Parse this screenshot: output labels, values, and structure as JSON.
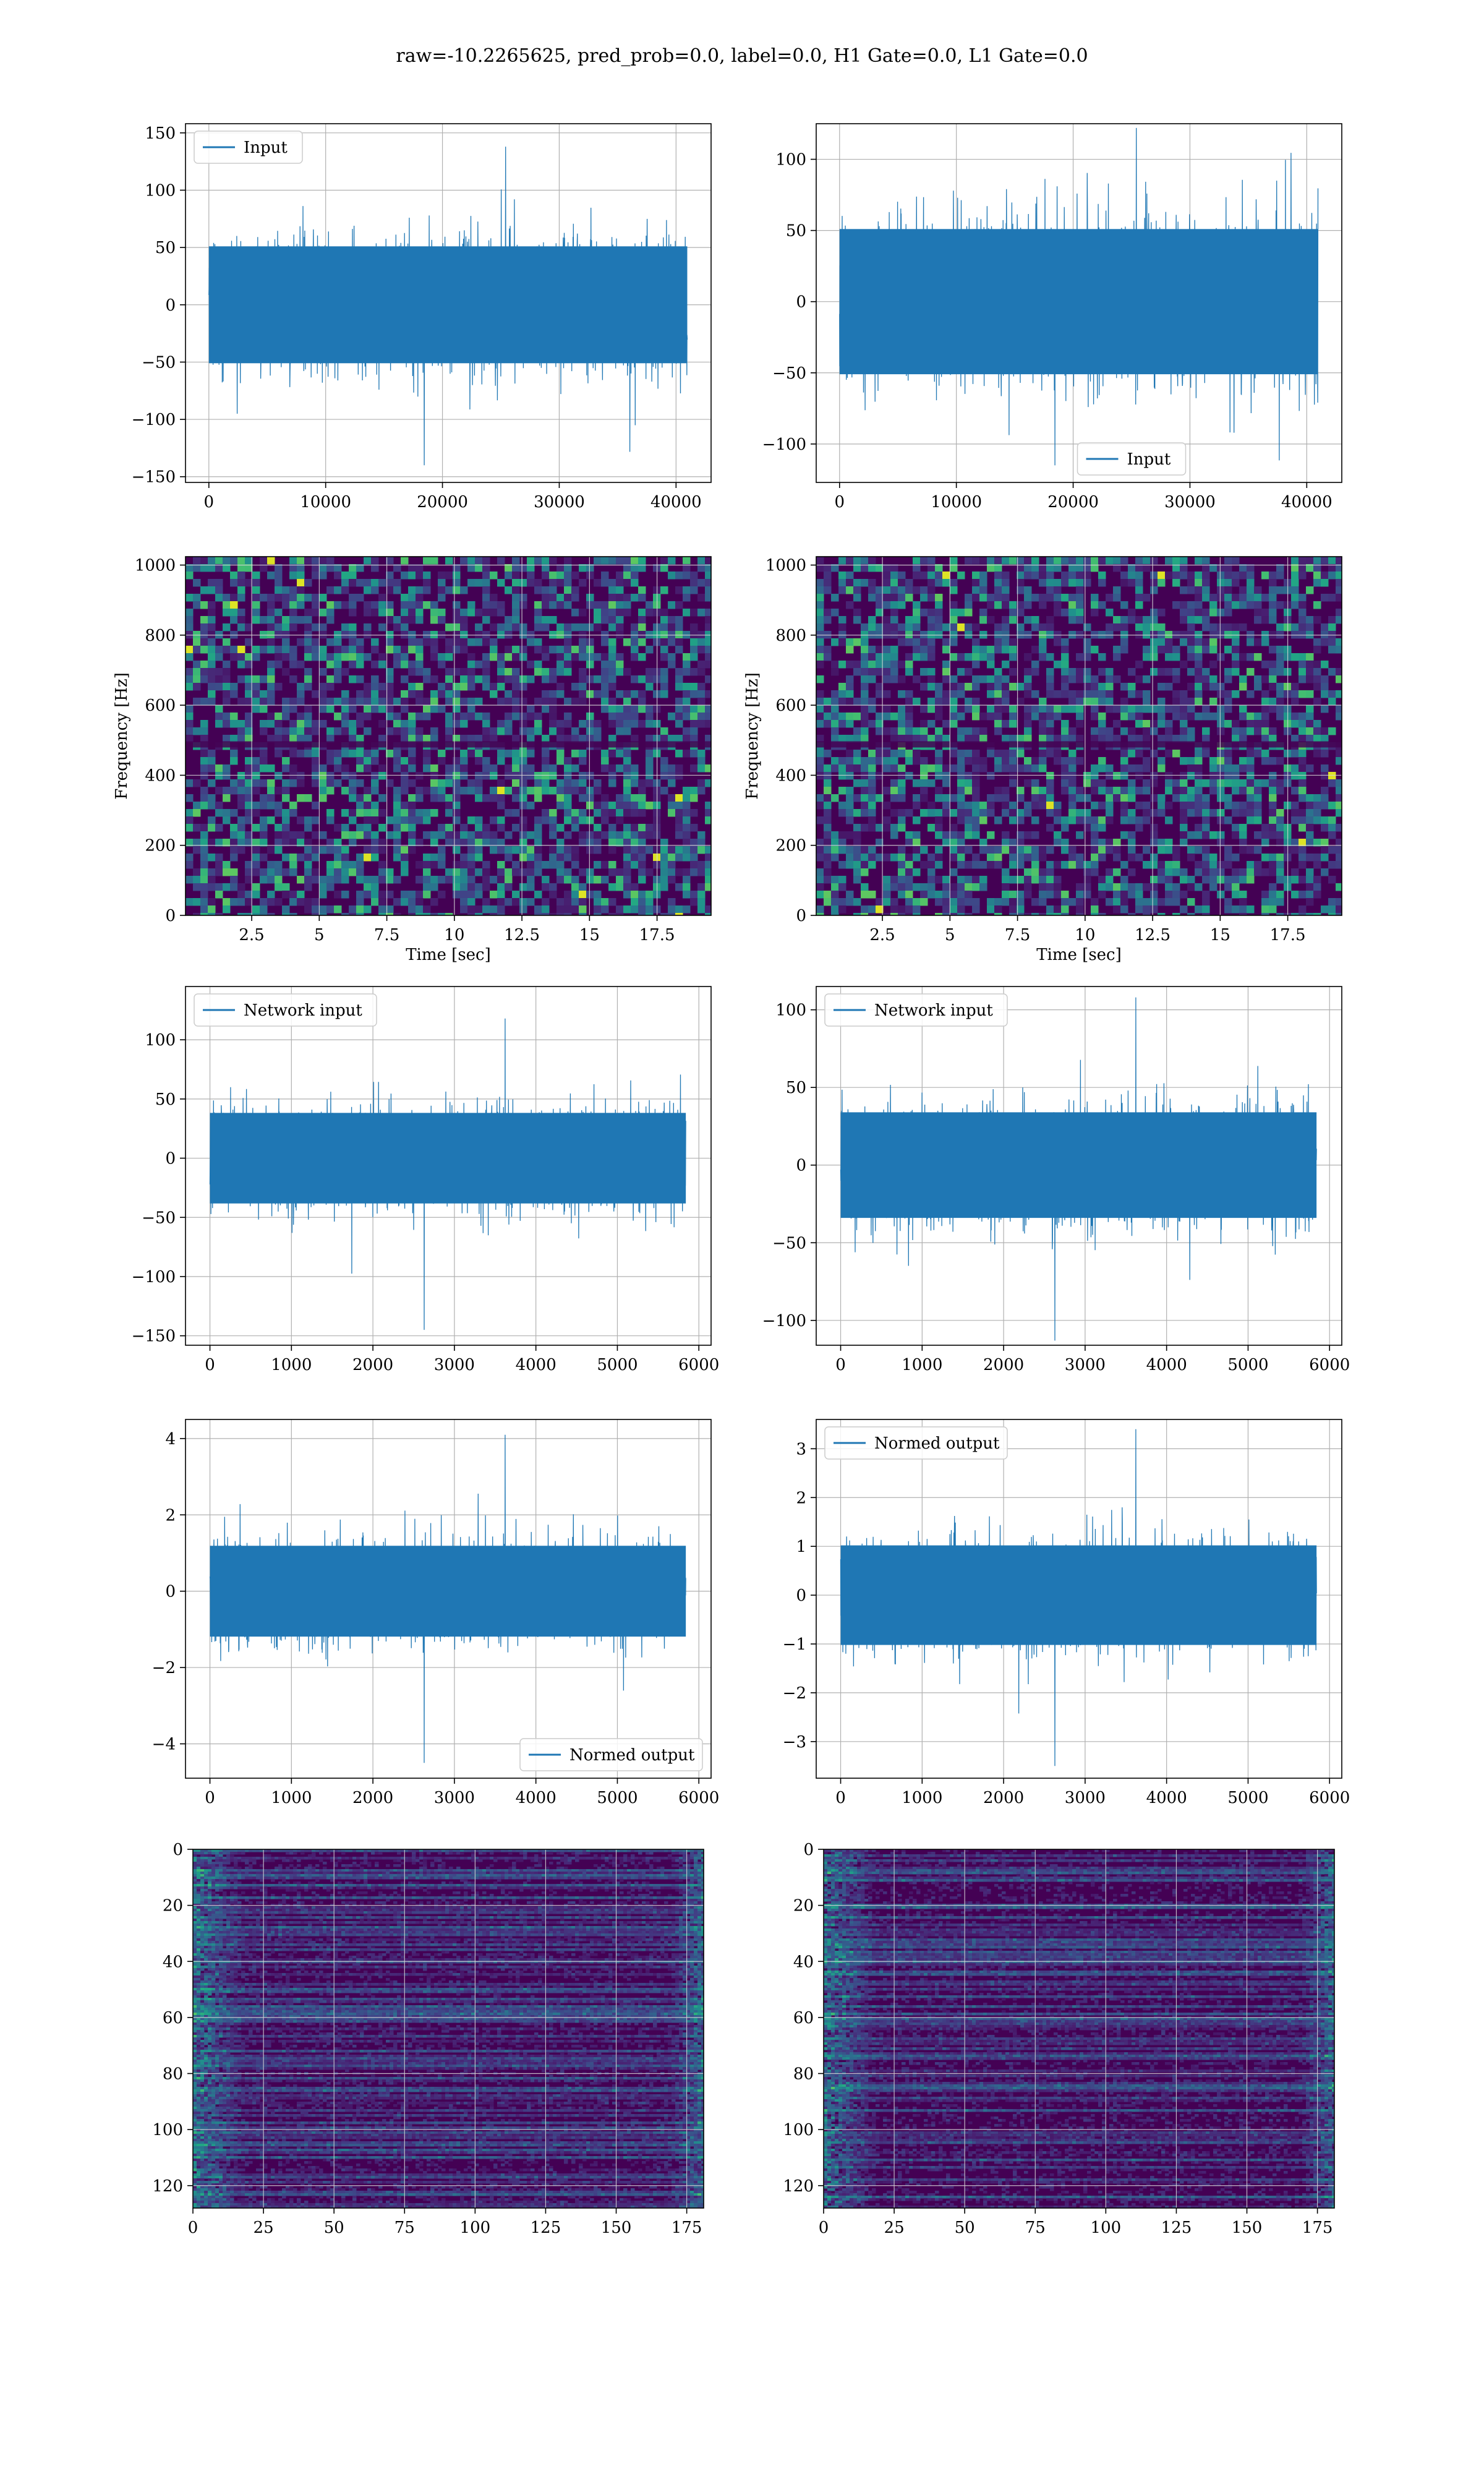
{
  "figure": {
    "suptitle": "raw=-10.2265625, pred_prob=0.0, label=0.0, H1 Gate=0.0, L1 Gate=0.0"
  },
  "colors": {
    "line": "#1f77b4",
    "grid": "#b0b0b0",
    "axes": "#000000",
    "viridis_dark": "#440154",
    "viridis_mid": "#21918c",
    "viridis_bright": "#fde725"
  },
  "chart_data": [
    {
      "id": "ts-input-h1",
      "type": "line",
      "title": "",
      "xlabel": "",
      "ylabel": "",
      "xlim": [
        -2000,
        43000
      ],
      "ylim": [
        -155,
        158
      ],
      "xticks": [
        0,
        10000,
        20000,
        30000,
        40000
      ],
      "yticks": [
        -150,
        -100,
        -50,
        0,
        50,
        100,
        150
      ],
      "legend": {
        "label": "Input",
        "loc": "upper left"
      },
      "series": [
        {
          "name": "Input",
          "x_range": [
            0,
            40960
          ],
          "envelope_typical": [
            -60,
            60
          ],
          "extremes": [
            -140,
            138
          ]
        }
      ],
      "grid": true
    },
    {
      "id": "ts-input-l1",
      "type": "line",
      "title": "",
      "xlabel": "",
      "ylabel": "",
      "xlim": [
        -2000,
        43000
      ],
      "ylim": [
        -127,
        125
      ],
      "xticks": [
        0,
        10000,
        20000,
        30000,
        40000
      ],
      "yticks": [
        -100,
        -50,
        0,
        50,
        100
      ],
      "legend": {
        "label": "Input",
        "loc": "lower center"
      },
      "series": [
        {
          "name": "Input",
          "x_range": [
            0,
            40960
          ],
          "envelope_typical": [
            -60,
            60
          ],
          "extremes": [
            -115,
            122
          ]
        }
      ],
      "grid": true
    },
    {
      "id": "spec-h1",
      "type": "heatmap",
      "title": "",
      "xlabel": "Time [sec]",
      "ylabel": "Frequency [Hz]",
      "xlim": [
        0.05,
        19.5
      ],
      "ylim": [
        0,
        1024
      ],
      "xticks": [
        2.5,
        5.0,
        7.5,
        10.0,
        12.5,
        15.0,
        17.5
      ],
      "yticks": [
        0,
        200,
        400,
        600,
        800,
        1000
      ],
      "colormap": "viridis",
      "grid": true
    },
    {
      "id": "spec-l1",
      "type": "heatmap",
      "title": "",
      "xlabel": "Time [sec]",
      "ylabel": "Frequency [Hz]",
      "xlim": [
        0.05,
        19.5
      ],
      "ylim": [
        0,
        1024
      ],
      "xticks": [
        2.5,
        5.0,
        7.5,
        10.0,
        12.5,
        15.0,
        17.5
      ],
      "yticks": [
        0,
        200,
        400,
        600,
        800,
        1000
      ],
      "colormap": "viridis",
      "grid": true
    },
    {
      "id": "ts-network-h1",
      "type": "line",
      "title": "",
      "xlabel": "",
      "ylabel": "",
      "xlim": [
        -300,
        6150
      ],
      "ylim": [
        -158,
        145
      ],
      "xticks": [
        0,
        1000,
        2000,
        3000,
        4000,
        5000,
        6000
      ],
      "yticks": [
        -150,
        -100,
        -50,
        0,
        50,
        100
      ],
      "legend": {
        "label": "Network input",
        "loc": "upper left"
      },
      "series": [
        {
          "name": "Network input",
          "x_range": [
            0,
            5840
          ],
          "envelope_typical": [
            -45,
            45
          ],
          "extremes": [
            -145,
            118
          ]
        }
      ],
      "grid": true
    },
    {
      "id": "ts-network-l1",
      "type": "line",
      "title": "",
      "xlabel": "",
      "ylabel": "",
      "xlim": [
        -300,
        6150
      ],
      "ylim": [
        -116,
        115
      ],
      "xticks": [
        0,
        1000,
        2000,
        3000,
        4000,
        5000,
        6000
      ],
      "yticks": [
        -100,
        -50,
        0,
        50,
        100
      ],
      "legend": {
        "label": "Network input",
        "loc": "upper left"
      },
      "series": [
        {
          "name": "Network input",
          "x_range": [
            0,
            5840
          ],
          "envelope_typical": [
            -40,
            40
          ],
          "extremes": [
            -113,
            108
          ]
        }
      ],
      "grid": true
    },
    {
      "id": "ts-normed-h1",
      "type": "line",
      "title": "",
      "xlabel": "",
      "ylabel": "",
      "xlim": [
        -300,
        6150
      ],
      "ylim": [
        -4.9,
        4.5
      ],
      "xticks": [
        0,
        1000,
        2000,
        3000,
        4000,
        5000,
        6000
      ],
      "yticks": [
        -4,
        -2,
        0,
        2,
        4
      ],
      "legend": {
        "label": "Normed output",
        "loc": "lower right"
      },
      "series": [
        {
          "name": "Normed output",
          "x_range": [
            0,
            5840
          ],
          "envelope_typical": [
            -1.4,
            1.4
          ],
          "extremes": [
            -4.5,
            4.1
          ]
        }
      ],
      "grid": true
    },
    {
      "id": "ts-normed-l1",
      "type": "line",
      "title": "",
      "xlabel": "",
      "ylabel": "",
      "xlim": [
        -300,
        6150
      ],
      "ylim": [
        -3.75,
        3.6
      ],
      "xticks": [
        0,
        1000,
        2000,
        3000,
        4000,
        5000,
        6000
      ],
      "yticks": [
        -3,
        -2,
        -1,
        0,
        1,
        2,
        3
      ],
      "legend": {
        "label": "Normed output",
        "loc": "upper left"
      },
      "series": [
        {
          "name": "Normed output",
          "x_range": [
            0,
            5840
          ],
          "envelope_typical": [
            -1.2,
            1.2
          ],
          "extremes": [
            -3.5,
            3.4
          ]
        }
      ],
      "grid": true
    },
    {
      "id": "feat-h1",
      "type": "heatmap",
      "title": "",
      "xlabel": "",
      "ylabel": "",
      "xlim": [
        0,
        181
      ],
      "ylim": [
        0,
        128
      ],
      "y_inverted": true,
      "xticks": [
        0,
        25,
        50,
        75,
        100,
        125,
        150,
        175
      ],
      "yticks": [
        0,
        20,
        40,
        60,
        80,
        100,
        120
      ],
      "colormap": "viridis",
      "grid": true
    },
    {
      "id": "feat-l1",
      "type": "heatmap",
      "title": "",
      "xlabel": "",
      "ylabel": "",
      "xlim": [
        0,
        181
      ],
      "ylim": [
        0,
        128
      ],
      "y_inverted": true,
      "xticks": [
        0,
        25,
        50,
        75,
        100,
        125,
        150,
        175
      ],
      "yticks": [
        0,
        20,
        40,
        60,
        80,
        100,
        120
      ],
      "colormap": "viridis",
      "grid": true
    }
  ]
}
